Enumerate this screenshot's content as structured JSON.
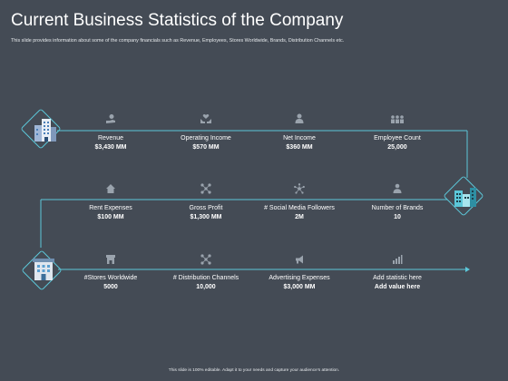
{
  "title": "Current Business Statistics of the Company",
  "subtitle": "This slide provides information about some of the company financials such as Revenue, Employees, Stores Worldwide, Brands, Distribution Channels etc.",
  "footer": "This slide is 100% editable. Adapt it to your needs and capture your audience's attention.",
  "accent_color": "#5cc7d9",
  "stats": [
    {
      "icon": "hand-coin-icon",
      "label": "Revenue",
      "value": "$3,430 MM"
    },
    {
      "icon": "hands-heart-icon",
      "label": "Operating Income",
      "value": "$570 MM"
    },
    {
      "icon": "person-dollar-icon",
      "label": "Net Income",
      "value": "$360 MM"
    },
    {
      "icon": "people-group-icon",
      "label": "Employee Count",
      "value": "25,000"
    },
    {
      "icon": "house-icon",
      "label": "Rent Expenses",
      "value": "$100 MM"
    },
    {
      "icon": "network-nodes-icon",
      "label": "Gross Profit",
      "value": "$1,300 MM"
    },
    {
      "icon": "social-network-icon",
      "label": "# Social Media Followers",
      "value": "2M"
    },
    {
      "icon": "person-badge-icon",
      "label": "Number of Brands",
      "value": "10"
    },
    {
      "icon": "store-icon",
      "label": "#Stores Worldwide",
      "value": "5000"
    },
    {
      "icon": "distribution-nodes-icon",
      "label": "# Distribution Channels",
      "value": "10,000"
    },
    {
      "icon": "megaphone-icon",
      "label": "Advertising Expenses",
      "value": "$3,000 MM"
    },
    {
      "icon": "bar-chart-icon",
      "label": "Add statistic here",
      "value": "Add value here"
    }
  ]
}
